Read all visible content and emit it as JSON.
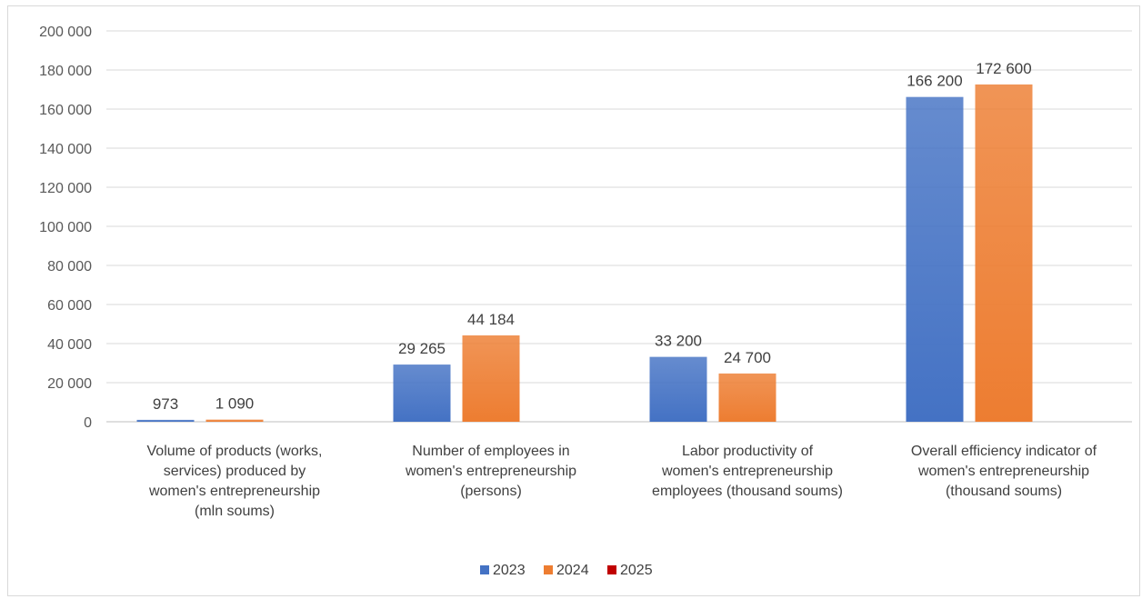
{
  "chart_data": {
    "type": "bar",
    "categories": [
      [
        "Volume of products (works,",
        "services) produced by",
        "women's entrepreneurship",
        "(mln soums)"
      ],
      [
        "Number of employees in",
        "women's entrepreneurship",
        "(persons)"
      ],
      [
        "Labor productivity of",
        "women's entrepreneurship",
        "employees (thousand soums)"
      ],
      [
        "Overall efficiency indicator of",
        "women's entrepreneurship",
        "(thousand soums)"
      ]
    ],
    "series": [
      {
        "name": "2023",
        "color": "#4472C4",
        "values": [
          973,
          29265,
          33200,
          166200
        ],
        "labels": [
          "973",
          "29 265",
          "33 200",
          "166 200"
        ]
      },
      {
        "name": "2024",
        "color": "#ED7D31",
        "values": [
          1090,
          44184,
          24700,
          172600
        ],
        "labels": [
          "1 090",
          "44 184",
          "24 700",
          "172 600"
        ]
      },
      {
        "name": "2025",
        "color": "#C00000",
        "values": [
          0,
          0,
          0,
          0
        ],
        "labels": [
          "",
          "",
          "",
          ""
        ]
      }
    ],
    "ylim": [
      0,
      200000
    ],
    "yticks": [
      "0",
      "20 000",
      "40 000",
      "60 000",
      "80 000",
      "100 000",
      "120 000",
      "140 000",
      "160 000",
      "180 000",
      "200 000"
    ],
    "grid": true,
    "legend_position": "bottom",
    "title": "",
    "xlabel": "",
    "ylabel": ""
  }
}
